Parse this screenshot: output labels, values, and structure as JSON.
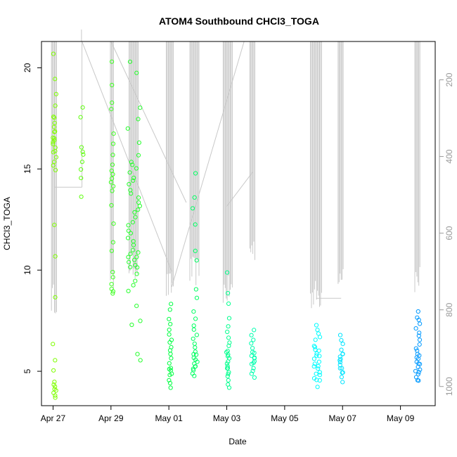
{
  "chart_data": {
    "type": "scatter",
    "title": "ATOM4 Southbound CHCl3_TOGA",
    "xlabel": "Date",
    "ylabel": "CHCl3_TOGA",
    "x_ticks": [
      "Apr 27",
      "Apr 29",
      "May 01",
      "May 03",
      "May 05",
      "May 07",
      "May 09"
    ],
    "xlim": [
      "Apr 26.6",
      "May 10.2"
    ],
    "ylim": [
      3.3,
      21.3
    ],
    "y_ticks": [
      5,
      10,
      15,
      20
    ],
    "y2_ticks": [
      200,
      400,
      600,
      800,
      1000
    ],
    "y2lim": [
      1050,
      100
    ],
    "y2_reversed": true,
    "grid": false,
    "colors": {
      "points_scale": [
        "#80ff00",
        "#00ff80",
        "#00ffff",
        "#0099ff"
      ],
      "altitude_line": "#c8c8c8",
      "axes": "#000000",
      "right_axis": "#9a9a9a"
    },
    "point_clusters": [
      {
        "x": 27.05,
        "spread": 0.06,
        "values": [
          20.7,
          19.4,
          18.7,
          18.1,
          17.6,
          17.5,
          17.3,
          17.1,
          16.9,
          16.8,
          16.6,
          16.5,
          16.4,
          16.3,
          16.2,
          16.0,
          15.9,
          15.8,
          15.6,
          15.4,
          15.2,
          15.0,
          12.2,
          10.7,
          8.7,
          6.3,
          5.5,
          5.0,
          4.5,
          4.3,
          4.2,
          4.1,
          4.0,
          3.9,
          3.8,
          3.7
        ]
      },
      {
        "x": 28.0,
        "spread": 0.05,
        "values": [
          18.0,
          17.6,
          16.1,
          15.9,
          15.7,
          15.4,
          15.0,
          14.6,
          13.6
        ]
      },
      {
        "x": 29.05,
        "spread": 0.05,
        "values": [
          20.3,
          19.1,
          18.3,
          17.9,
          16.8,
          16.2,
          15.7,
          15.2,
          14.9,
          14.7,
          14.5,
          14.3,
          14.1,
          13.9,
          13.2,
          12.3,
          11.4,
          10.9,
          9.9,
          9.6,
          9.3,
          9.1,
          9.0,
          8.8
        ]
      },
      {
        "x": 29.8,
        "spread": 0.22,
        "values": [
          20.3,
          19.8,
          18.0,
          17.5,
          17.0,
          16.3,
          15.7,
          15.4,
          15.2,
          15.0,
          14.8,
          14.6,
          14.4,
          14.2,
          14.0,
          13.8,
          13.6,
          13.4,
          13.2,
          13.0,
          12.8,
          12.6,
          12.4,
          12.2,
          12.0,
          11.8,
          11.6,
          11.4,
          11.2,
          11.0,
          10.9,
          10.8,
          10.7,
          10.6,
          10.5,
          10.4,
          10.3,
          10.2,
          10.1,
          9.8,
          9.5,
          9.3,
          9.0,
          8.2,
          7.5,
          7.3,
          5.8,
          5.6
        ]
      },
      {
        "x": 31.05,
        "spread": 0.05,
        "values": [
          8.3,
          8.0,
          7.6,
          7.3,
          7.0,
          6.8,
          6.6,
          6.4,
          6.2,
          6.0,
          5.8,
          5.6,
          5.4,
          5.2,
          5.1,
          5.0,
          4.9,
          4.8,
          4.6,
          4.4,
          4.2
        ]
      },
      {
        "x": 31.9,
        "spread": 0.09,
        "values": [
          14.8,
          13.6,
          13.0,
          12.3,
          11.0,
          10.5,
          9.0,
          8.6,
          8.0,
          7.6,
          7.3,
          7.0,
          6.8,
          6.6,
          6.4,
          6.2,
          6.0,
          5.9,
          5.8,
          5.7,
          5.6,
          5.5,
          5.4,
          5.3,
          5.2,
          5.1,
          5.0,
          4.9,
          4.8
        ]
      },
      {
        "x": 33.05,
        "spread": 0.07,
        "values": [
          9.9,
          8.8,
          8.3,
          7.6,
          7.2,
          6.9,
          6.6,
          6.4,
          6.2,
          6.0,
          5.9,
          5.8,
          5.7,
          5.6,
          5.5,
          5.4,
          5.3,
          5.2,
          5.1,
          5.0,
          4.9,
          4.8,
          4.6,
          4.4,
          4.2
        ]
      },
      {
        "x": 33.9,
        "spread": 0.06,
        "values": [
          7.1,
          6.8,
          6.6,
          6.4,
          6.2,
          6.0,
          5.9,
          5.8,
          5.7,
          5.6,
          5.5,
          5.4,
          5.3,
          5.1,
          5.0,
          4.9,
          4.7
        ]
      },
      {
        "x": 36.1,
        "spread": 0.14,
        "values": [
          7.3,
          7.1,
          6.9,
          6.7,
          6.5,
          6.3,
          6.2,
          6.1,
          6.0,
          5.9,
          5.8,
          5.7,
          5.6,
          5.5,
          5.4,
          5.3,
          5.2,
          5.1,
          5.0,
          4.9,
          4.8,
          4.7,
          4.6,
          4.5,
          4.2
        ]
      },
      {
        "x": 36.95,
        "spread": 0.07,
        "values": [
          6.8,
          6.5,
          6.3,
          6.1,
          5.9,
          5.8,
          5.7,
          5.6,
          5.5,
          5.4,
          5.3,
          5.2,
          5.1,
          5.0,
          4.9,
          4.7,
          4.5
        ]
      },
      {
        "x": 39.6,
        "spread": 0.08,
        "values": [
          7.9,
          7.7,
          7.5,
          7.3,
          7.1,
          6.9,
          6.7,
          6.5,
          6.3,
          6.1,
          6.0,
          5.9,
          5.8,
          5.7,
          5.6,
          5.5,
          5.4,
          5.3,
          5.2,
          5.1,
          5.0,
          4.9,
          4.8,
          4.7,
          4.6,
          4.5
        ]
      }
    ]
  }
}
